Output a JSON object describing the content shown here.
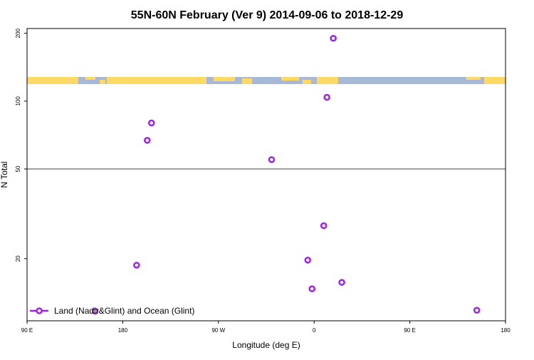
{
  "chart_data": {
    "type": "scatter",
    "title": "55N-60N February (Ver 9)   2014-09-06 to 2018-12-29",
    "x_label": "Longitude (deg E)",
    "y_label": "N Total",
    "series": [
      {
        "name": "Land (Nadir&Glint) and Ocean (Glint)",
        "color": "#a020f0",
        "x": [
          378,
          372,
          207,
          203,
          320,
          369,
          354,
          193,
          386,
          358,
          154,
          513
        ],
        "values": [
          190,
          104,
          80,
          67,
          55,
          28,
          19.7,
          18.7,
          15.7,
          14.7,
          11.7,
          11.8
        ]
      }
    ],
    "xlim": [
      90,
      540
    ],
    "xticks": [
      {
        "value": 90,
        "label": "90 E"
      },
      180,
      {
        "value": 270,
        "label": "90 W"
      },
      {
        "value": 360,
        "label": "0"
      },
      {
        "value": 450,
        "label": "90 E"
      },
      {
        "value": 540,
        "label": "180"
      }
    ],
    "ylim": [
      10.6,
      210
    ],
    "yticks": [
      20,
      50,
      100,
      200
    ],
    "log_y": true,
    "reference_line": 50,
    "legend": "bottom left"
  }
}
